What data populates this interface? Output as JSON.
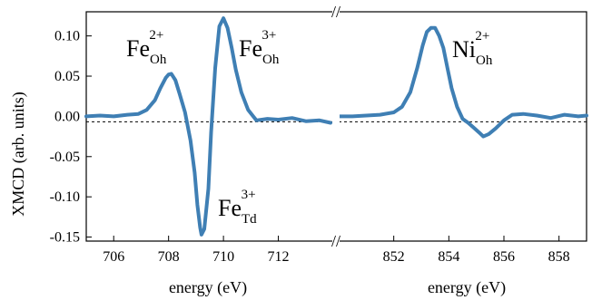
{
  "chart_data": {
    "type": "line",
    "ylabel": "XMCD (arb. units)",
    "ylim": [
      -0.155,
      0.13
    ],
    "yticks": [
      "0.10",
      "0.05",
      "0.00",
      "-0.05",
      "-0.10",
      "-0.15"
    ],
    "panels": [
      {
        "xlabel": "energy (eV)",
        "xlim": [
          705,
          714
        ],
        "xticks": [
          "706",
          "708",
          "710",
          "712"
        ],
        "series_color": "#3f7fb4",
        "x": [
          705.0,
          705.5,
          706.0,
          706.5,
          706.9,
          707.2,
          707.5,
          707.7,
          707.9,
          708.0,
          708.1,
          708.25,
          708.4,
          708.6,
          708.8,
          708.95,
          709.05,
          709.15,
          709.2,
          709.3,
          709.45,
          709.55,
          709.7,
          709.85,
          710.0,
          710.15,
          710.3,
          710.45,
          710.65,
          710.9,
          711.2,
          711.6,
          712.0,
          712.5,
          713.0,
          713.5,
          713.9
        ],
        "y": [
          0.0,
          0.001,
          0.0,
          0.002,
          0.003,
          0.008,
          0.02,
          0.035,
          0.048,
          0.052,
          0.053,
          0.045,
          0.028,
          0.005,
          -0.03,
          -0.07,
          -0.11,
          -0.138,
          -0.147,
          -0.14,
          -0.09,
          -0.02,
          0.06,
          0.112,
          0.122,
          0.11,
          0.085,
          0.058,
          0.03,
          0.008,
          -0.005,
          -0.003,
          -0.004,
          -0.002,
          -0.006,
          -0.005,
          -0.008
        ]
      },
      {
        "xlabel": "energy (eV)",
        "xlim": [
          850,
          859
        ],
        "xticks": [
          "852",
          "854",
          "856",
          "858"
        ],
        "series_color": "#3f7fb4",
        "x": [
          850.0,
          850.5,
          851.0,
          851.5,
          852.0,
          852.3,
          852.6,
          852.85,
          853.05,
          853.2,
          853.35,
          853.5,
          853.65,
          853.8,
          853.95,
          854.1,
          854.3,
          854.5,
          854.7,
          854.9,
          855.1,
          855.25,
          855.45,
          855.7,
          856.0,
          856.3,
          856.7,
          857.2,
          857.7,
          858.2,
          858.7,
          859.0
        ],
        "y": [
          0.0,
          0.0,
          0.001,
          0.002,
          0.005,
          0.012,
          0.03,
          0.06,
          0.088,
          0.105,
          0.11,
          0.11,
          0.1,
          0.085,
          0.06,
          0.035,
          0.012,
          -0.003,
          -0.008,
          -0.014,
          -0.02,
          -0.025,
          -0.022,
          -0.015,
          -0.005,
          0.002,
          0.003,
          0.001,
          -0.002,
          0.002,
          0.0,
          0.001
        ]
      }
    ],
    "annotations": [
      {
        "base": "Fe",
        "sub": "Oh",
        "sup": "2+"
      },
      {
        "base": "Fe",
        "sub": "Oh",
        "sup": "3+"
      },
      {
        "base": "Fe",
        "sub": "Td",
        "sup": "3+"
      },
      {
        "base": "Ni",
        "sub": "Oh",
        "sup": "2+"
      }
    ],
    "axis_break": "//"
  }
}
